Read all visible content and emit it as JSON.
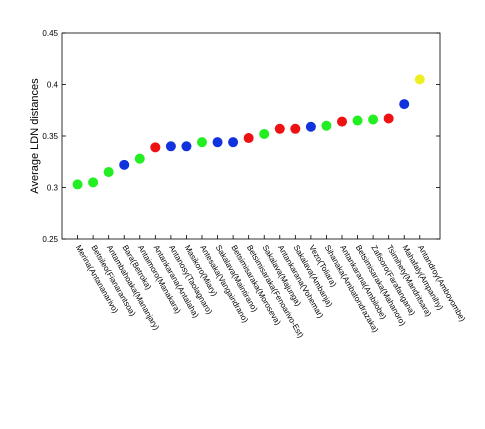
{
  "chart_data": {
    "type": "scatter",
    "ylabel": "Average LDN distances",
    "categories": [
      "Merina(Antananarivo)",
      "Betsileo(Fianarantsoa)",
      "Antambahoaka(Mananjary)",
      "Bara(Betroka)",
      "Antaimoro(Manakara)",
      "Antankarana(Antalaha)",
      "Antanosy(Taolagnaro)",
      "Masikoro(Miary)",
      "Antesaka(Vangaindrano)",
      "Sakalava(Maintirano)",
      "Betsimisaraka(Moroseva)",
      "Betsimisaraka(Fenoarivo-Est)",
      "Sakalava(Majunga)",
      "Antankarana(Vohemar)",
      "Sakalava(Ambanja)",
      "Vezo(Toliara)",
      "Sihanaka(Ambatondrazaka)",
      "Antankarana(Ambilobe)",
      "Betsimisaraka(Mahanoro)",
      "Zafisoro(Farafangana)",
      "Tsimihety(Mandritsara)",
      "Mahafaly(Ampanihy)",
      "Antandroy(Ambovombe)"
    ],
    "values": [
      0.303,
      0.305,
      0.315,
      0.322,
      0.328,
      0.339,
      0.34,
      0.34,
      0.344,
      0.344,
      0.344,
      0.348,
      0.352,
      0.357,
      0.357,
      0.359,
      0.36,
      0.364,
      0.365,
      0.366,
      0.367,
      0.381,
      0.405
    ],
    "colors": [
      "#22ee22",
      "#22ee22",
      "#22ee22",
      "#1133dd",
      "#22ee22",
      "#ee1111",
      "#1133dd",
      "#1133dd",
      "#22ee22",
      "#1133dd",
      "#1133dd",
      "#ee1111",
      "#22ee22",
      "#ee1111",
      "#ee1111",
      "#1133dd",
      "#22ee22",
      "#ee1111",
      "#22ee22",
      "#22ee22",
      "#ee1111",
      "#1133dd",
      "#eeee22"
    ],
    "ylim": [
      0.25,
      0.45
    ],
    "yticks": [
      0.25,
      0.3,
      0.35,
      0.4,
      0.45
    ]
  }
}
